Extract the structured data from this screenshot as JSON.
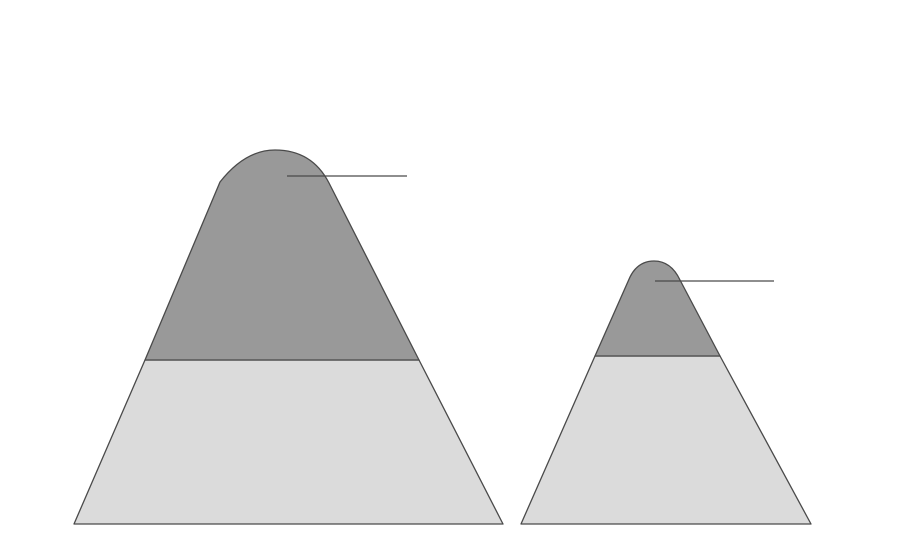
{
  "diagram": {
    "kind": "layered-mountains",
    "mountains": [
      {
        "id": "large",
        "upper_color": "#999999",
        "lower_color": "#dbdbdb",
        "outline_color": "#4a4a4a",
        "has_leader_line": true
      },
      {
        "id": "small",
        "upper_color": "#999999",
        "lower_color": "#dbdbdb",
        "outline_color": "#4a4a4a",
        "has_leader_line": true
      }
    ]
  }
}
